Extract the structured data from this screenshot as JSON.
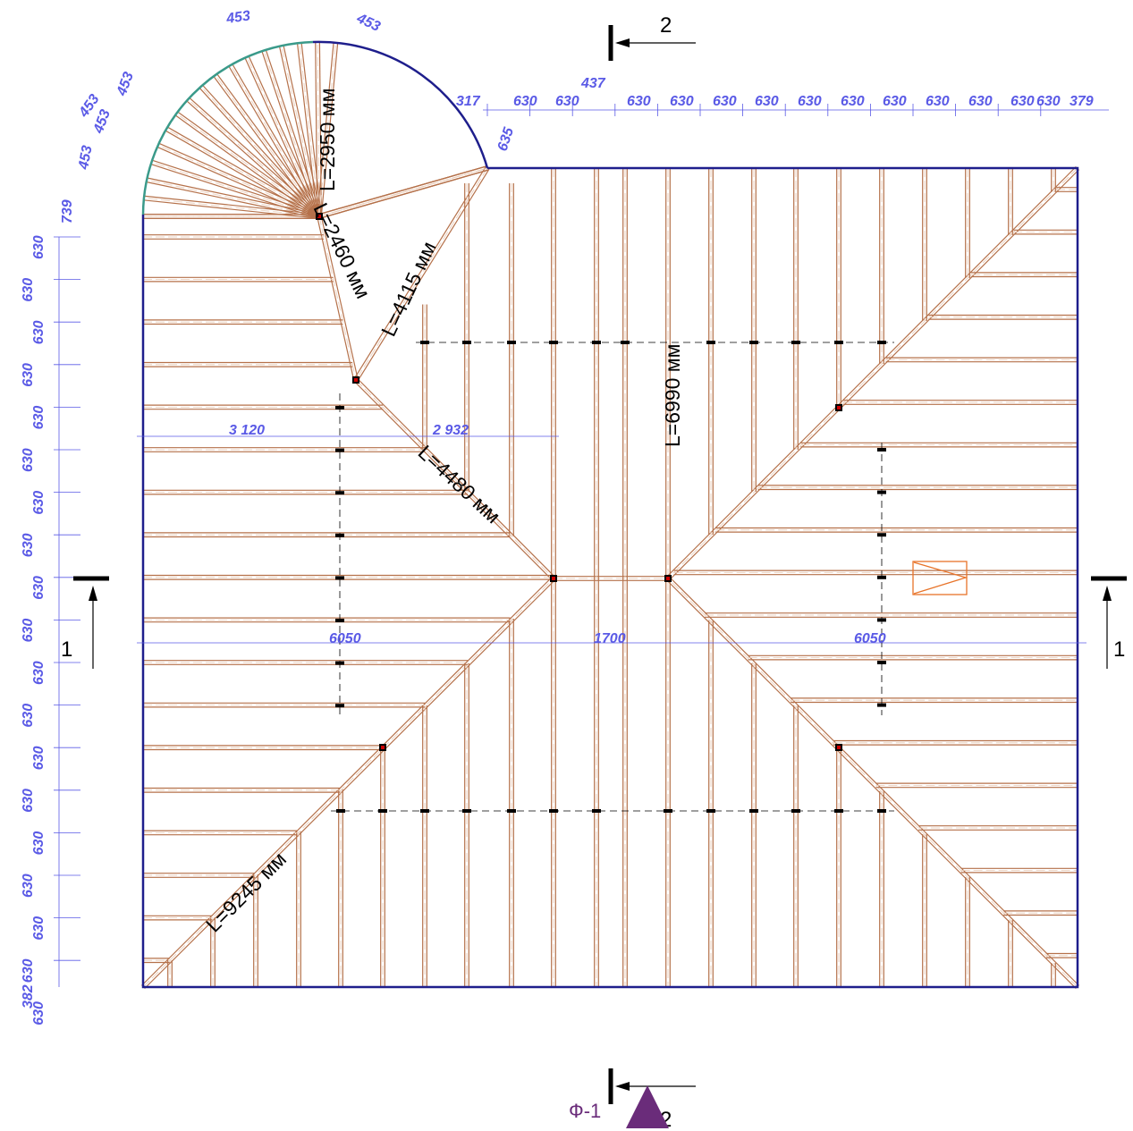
{
  "top_dims": [
    "630",
    "630",
    "437",
    "630",
    "630",
    "630",
    "630",
    "630",
    "630",
    "630",
    "630",
    "630",
    "630",
    "630",
    "379"
  ],
  "top_317": "317",
  "diag_635": "635",
  "arc_dims": [
    "453",
    "453",
    "453",
    "453",
    "453",
    "453"
  ],
  "left_dims": [
    "739",
    "630",
    "630",
    "630",
    "630",
    "630",
    "630",
    "630",
    "630",
    "630",
    "630",
    "630",
    "630",
    "630",
    "630",
    "630",
    "630",
    "630",
    "630",
    "630",
    "382"
  ],
  "bottom_dims": {
    "left": "6050",
    "mid": "1700",
    "right": "6050"
  },
  "mid_dims": {
    "a": "3 120",
    "b": "2 932"
  },
  "lengths": {
    "l2950": "L=2950 мм",
    "l2460": "L=2460 мм",
    "l4115": "L=4115 мм",
    "l6990": "L=6990 мм",
    "l4480": "L=4480 мм",
    "l9245": "L=9245 мм"
  },
  "sections": {
    "s1": "1",
    "s2": "2"
  },
  "marker_label": "Ф-1",
  "colors": {
    "outline": "#1e1e8c",
    "rafter": "#b5714a",
    "dimension": "#5a5ae6",
    "arc": "#3a9a8a",
    "marker": "#6a2c7a"
  }
}
